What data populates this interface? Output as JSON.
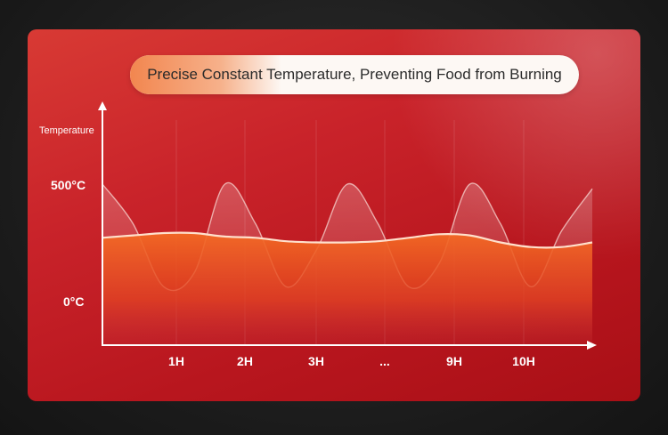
{
  "banner": {
    "text": "Precise Constant Temperature, Preventing Food from Burning"
  },
  "chart_data": {
    "type": "line",
    "ylabel": "Temperature",
    "yticks": [
      "500°C",
      "0°C"
    ],
    "xticks": [
      "1H",
      "2H",
      "3H",
      "...",
      "9H",
      "10H"
    ],
    "series": [
      {
        "x": [
          0,
          0.5,
          1,
          1.5,
          2,
          2.5,
          3,
          3.5,
          4,
          4.5,
          5,
          5.5,
          6,
          6.5,
          7,
          7.5,
          8
        ],
        "values": [
          500,
          330,
          60,
          120,
          500,
          330,
          60,
          220,
          500,
          330,
          60,
          160,
          500,
          330,
          60,
          300,
          480
        ]
      },
      {
        "x": [
          0,
          0.5,
          1,
          1.5,
          2,
          2.5,
          3,
          3.5,
          4,
          4.5,
          5,
          5.5,
          6,
          6.5,
          7,
          7.5,
          8
        ],
        "values": [
          270,
          280,
          290,
          290,
          275,
          270,
          255,
          250,
          250,
          255,
          270,
          285,
          280,
          250,
          230,
          230,
          250
        ]
      }
    ],
    "colors": {
      "panel": "#c9232a",
      "accent": "#f2864f",
      "line": "#ffd9c4",
      "fill": "#f05a1e"
    }
  }
}
